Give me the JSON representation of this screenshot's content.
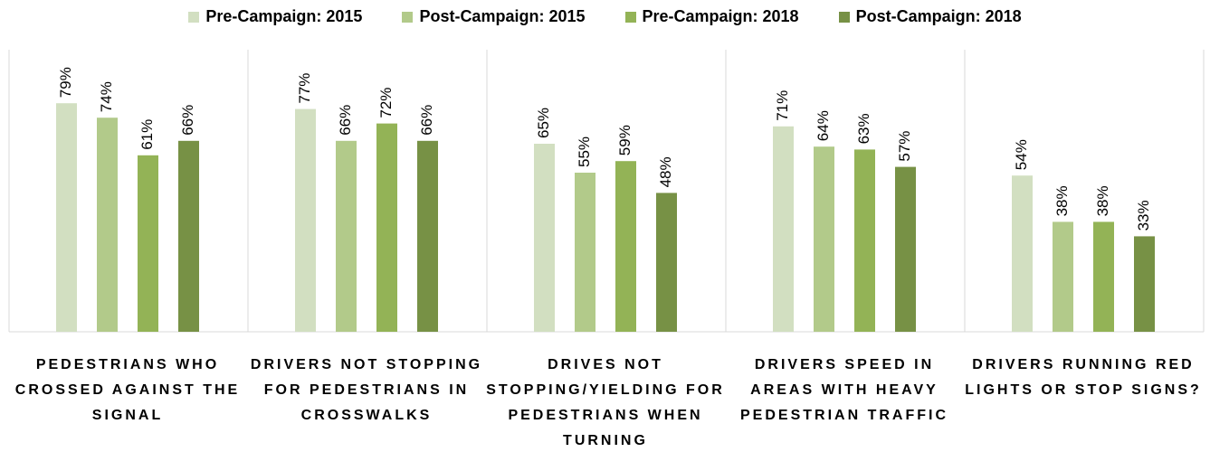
{
  "chart_data": {
    "type": "bar",
    "categories": [
      "PEDESTRIANS WHO CROSSED AGAINST THE SIGNAL",
      "DRIVERS NOT STOPPING FOR PEDESTRIANS IN CROSSWALKS",
      "DRIVES NOT STOPPING/YIELDING FOR PEDESTRIANS WHEN TURNING",
      "DRIVERS SPEED IN AREAS WITH HEAVY PEDESTRIAN TRAFFIC",
      "DRIVERS RUNNING RED LIGHTS OR STOP SIGNS?"
    ],
    "series": [
      {
        "name": "Pre-Campaign: 2015",
        "color": "#d2dfc1",
        "values": [
          79,
          77,
          65,
          71,
          54
        ],
        "value_labels": [
          "79%",
          "77%",
          "65%",
          "71%",
          "54%"
        ]
      },
      {
        "name": "Post-Campaign: 2015",
        "color": "#b2ca8a",
        "values": [
          74,
          66,
          55,
          64,
          38
        ],
        "value_labels": [
          "74%",
          "66%",
          "55%",
          "64%",
          "38%"
        ]
      },
      {
        "name": "Pre-Campaign: 2018",
        "color": "#93b356",
        "values": [
          61,
          72,
          59,
          63,
          38
        ],
        "value_labels": [
          "61%",
          "72%",
          "59%",
          "63%",
          "38%"
        ]
      },
      {
        "name": "Post-Campaign: 2018",
        "color": "#779145",
        "values": [
          66,
          66,
          48,
          57,
          33
        ],
        "value_labels": [
          "66%",
          "66%",
          "48%",
          "57%",
          "33%"
        ]
      }
    ],
    "ylim": [
      0,
      100
    ],
    "legend": "top"
  }
}
